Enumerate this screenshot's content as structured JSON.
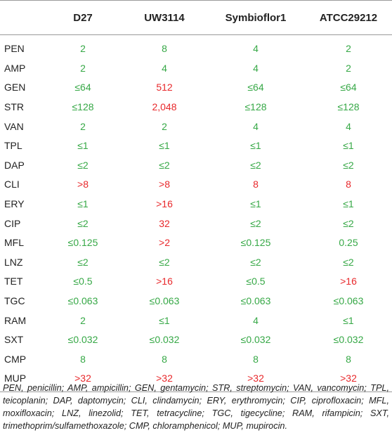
{
  "colors": {
    "susceptible": "#36a846",
    "resistant": "#e8282b"
  },
  "table": {
    "headers": [
      "",
      "D27",
      "UW3114",
      "Symbioflor1",
      "ATCC29212"
    ],
    "rows": [
      {
        "antibiotic": "PEN",
        "cells": [
          {
            "v": "2",
            "s": "s"
          },
          {
            "v": "8",
            "s": "s"
          },
          {
            "v": "4",
            "s": "s"
          },
          {
            "v": "2",
            "s": "s"
          }
        ]
      },
      {
        "antibiotic": "AMP",
        "cells": [
          {
            "v": "2",
            "s": "s"
          },
          {
            "v": "4",
            "s": "s"
          },
          {
            "v": "4",
            "s": "s"
          },
          {
            "v": "2",
            "s": "s"
          }
        ]
      },
      {
        "antibiotic": "GEN",
        "cells": [
          {
            "v": "≤64",
            "s": "s"
          },
          {
            "v": "512",
            "s": "r"
          },
          {
            "v": "≤64",
            "s": "s"
          },
          {
            "v": "≤64",
            "s": "s"
          }
        ]
      },
      {
        "antibiotic": "STR",
        "cells": [
          {
            "v": "≤128",
            "s": "s"
          },
          {
            "v": "2,048",
            "s": "r"
          },
          {
            "v": "≤128",
            "s": "s"
          },
          {
            "v": "≤128",
            "s": "s"
          }
        ]
      },
      {
        "antibiotic": "VAN",
        "cells": [
          {
            "v": "2",
            "s": "s"
          },
          {
            "v": "2",
            "s": "s"
          },
          {
            "v": "4",
            "s": "s"
          },
          {
            "v": "4",
            "s": "s"
          }
        ]
      },
      {
        "antibiotic": "TPL",
        "cells": [
          {
            "v": "≤1",
            "s": "s"
          },
          {
            "v": "≤1",
            "s": "s"
          },
          {
            "v": "≤1",
            "s": "s"
          },
          {
            "v": "≤1",
            "s": "s"
          }
        ]
      },
      {
        "antibiotic": "DAP",
        "cells": [
          {
            "v": "≤2",
            "s": "s"
          },
          {
            "v": "≤2",
            "s": "s"
          },
          {
            "v": "≤2",
            "s": "s"
          },
          {
            "v": "≤2",
            "s": "s"
          }
        ]
      },
      {
        "antibiotic": "CLI",
        "cells": [
          {
            "v": ">8",
            "s": "r"
          },
          {
            "v": ">8",
            "s": "r"
          },
          {
            "v": "8",
            "s": "r"
          },
          {
            "v": "8",
            "s": "r"
          }
        ]
      },
      {
        "antibiotic": "ERY",
        "cells": [
          {
            "v": "≤1",
            "s": "s"
          },
          {
            "v": ">16",
            "s": "r"
          },
          {
            "v": "≤1",
            "s": "s"
          },
          {
            "v": "≤1",
            "s": "s"
          }
        ]
      },
      {
        "antibiotic": "CIP",
        "cells": [
          {
            "v": "≤2",
            "s": "s"
          },
          {
            "v": "32",
            "s": "r"
          },
          {
            "v": "≤2",
            "s": "s"
          },
          {
            "v": "≤2",
            "s": "s"
          }
        ]
      },
      {
        "antibiotic": "MFL",
        "cells": [
          {
            "v": "≤0.125",
            "s": "s"
          },
          {
            "v": ">2",
            "s": "r"
          },
          {
            "v": "≤0.125",
            "s": "s"
          },
          {
            "v": "0.25",
            "s": "s"
          }
        ]
      },
      {
        "antibiotic": "LNZ",
        "cells": [
          {
            "v": "≤2",
            "s": "s"
          },
          {
            "v": "≤2",
            "s": "s"
          },
          {
            "v": "≤2",
            "s": "s"
          },
          {
            "v": "≤2",
            "s": "s"
          }
        ]
      },
      {
        "antibiotic": "TET",
        "cells": [
          {
            "v": "≤0.5",
            "s": "s"
          },
          {
            "v": ">16",
            "s": "r"
          },
          {
            "v": "≤0.5",
            "s": "s"
          },
          {
            "v": ">16",
            "s": "r"
          }
        ]
      },
      {
        "antibiotic": "TGC",
        "cells": [
          {
            "v": "≤0.063",
            "s": "s"
          },
          {
            "v": "≤0.063",
            "s": "s"
          },
          {
            "v": "≤0.063",
            "s": "s"
          },
          {
            "v": "≤0.063",
            "s": "s"
          }
        ]
      },
      {
        "antibiotic": "RAM",
        "cells": [
          {
            "v": "2",
            "s": "s"
          },
          {
            "v": "≤1",
            "s": "s"
          },
          {
            "v": "4",
            "s": "s"
          },
          {
            "v": "≤1",
            "s": "s"
          }
        ]
      },
      {
        "antibiotic": "SXT",
        "cells": [
          {
            "v": "≤0.032",
            "s": "s"
          },
          {
            "v": "≤0.032",
            "s": "s"
          },
          {
            "v": "≤0.032",
            "s": "s"
          },
          {
            "v": "≤0.032",
            "s": "s"
          }
        ]
      },
      {
        "antibiotic": "CMP",
        "cells": [
          {
            "v": "8",
            "s": "s"
          },
          {
            "v": "8",
            "s": "s"
          },
          {
            "v": "8",
            "s": "s"
          },
          {
            "v": "8",
            "s": "s"
          }
        ]
      },
      {
        "antibiotic": "MUP",
        "cells": [
          {
            "v": ">32",
            "s": "r"
          },
          {
            "v": ">32",
            "s": "r"
          },
          {
            "v": ">32",
            "s": "r"
          },
          {
            "v": ">32",
            "s": "r"
          }
        ]
      }
    ]
  },
  "footnote": "PEN, penicillin; AMP, ampicillin; GEN, gentamycin; STR, streptomycin; VAN, vancomycin; TPL, teicoplanin; DAP, daptomycin; CLI, clindamycin; ERY, erythromycin; CIP, ciprofloxacin; MFL, moxifloxacin; LNZ, linezolid; TET, tetracycline; TGC, tigecycline; RAM, rifampicin; SXT, trimethoprim/sulfamethoxazole; CMP, chloramphenicol; MUP, mupirocin."
}
